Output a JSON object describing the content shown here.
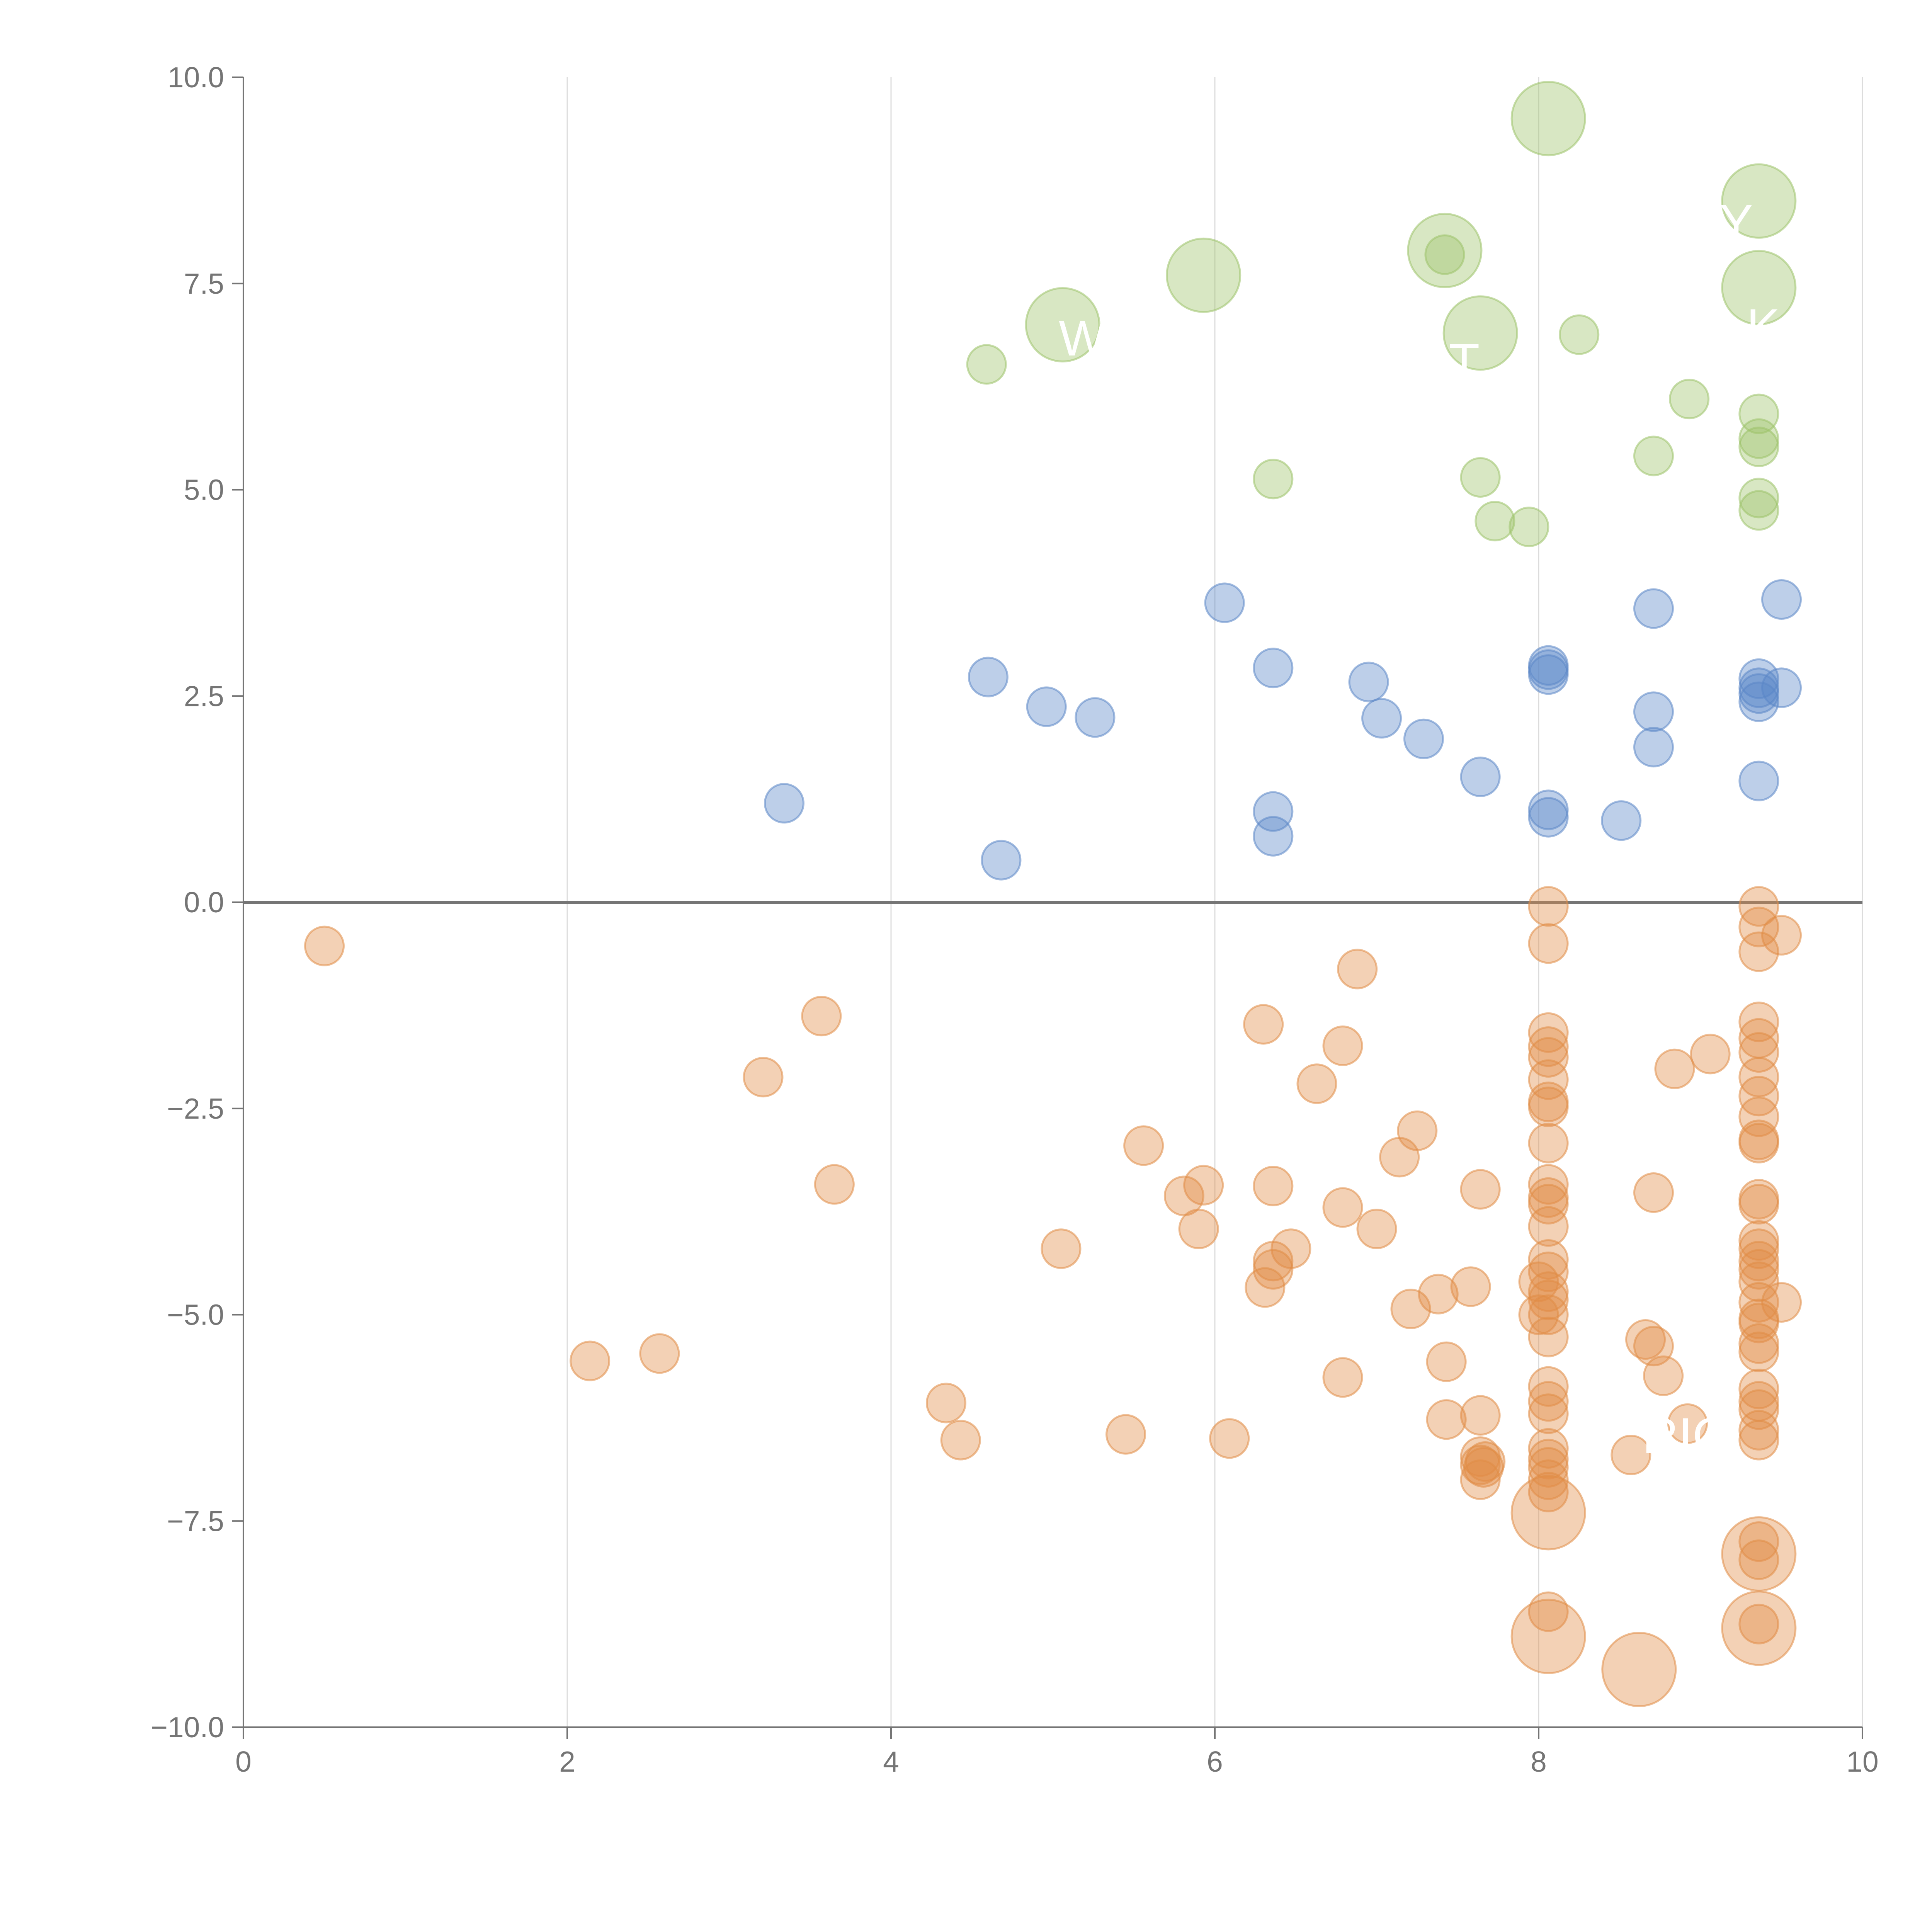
{
  "chart_data": {
    "type": "scatter",
    "title": "",
    "xlabel": "",
    "ylabel": "",
    "xlim": [
      0,
      10
    ],
    "ylim": [
      -10,
      10
    ],
    "x_ticks": [
      "0",
      "2",
      "4",
      "6",
      "8",
      "10"
    ],
    "y_ticks": [
      "10.0",
      "7.5",
      "5.0",
      "2.5",
      "0.0",
      "−2.5",
      "−5.0",
      "−7.5",
      "−10.0"
    ],
    "grid": "vertical",
    "reference_line_y": 0,
    "colors": {
      "high": "#9dc26a",
      "mid": "#5b87c7",
      "low": "#e08c45"
    },
    "series": [
      {
        "name": "high",
        "points": [
          {
            "x": 8.06,
            "y": 9.5,
            "s": 3
          },
          {
            "x": 9.36,
            "y": 8.5,
            "s": 3
          },
          {
            "x": 7.42,
            "y": 7.9,
            "s": 3
          },
          {
            "x": 5.93,
            "y": 7.6,
            "s": 3
          },
          {
            "x": 9.36,
            "y": 7.45,
            "s": 3
          },
          {
            "x": 5.06,
            "y": 7.0,
            "s": 3
          },
          {
            "x": 7.64,
            "y": 6.9,
            "s": 3
          },
          {
            "x": 7.42,
            "y": 7.85,
            "s": 1
          },
          {
            "x": 8.25,
            "y": 6.88,
            "s": 1
          },
          {
            "x": 4.59,
            "y": 6.52,
            "s": 1
          },
          {
            "x": 8.93,
            "y": 6.1,
            "s": 1
          },
          {
            "x": 9.36,
            "y": 5.92,
            "s": 1
          },
          {
            "x": 9.36,
            "y": 5.62,
            "s": 1
          },
          {
            "x": 9.36,
            "y": 5.52,
            "s": 1
          },
          {
            "x": 8.71,
            "y": 5.41,
            "s": 1
          },
          {
            "x": 6.36,
            "y": 5.13,
            "s": 1
          },
          {
            "x": 7.64,
            "y": 5.15,
            "s": 1
          },
          {
            "x": 9.36,
            "y": 4.9,
            "s": 1
          },
          {
            "x": 9.36,
            "y": 4.75,
            "s": 1
          },
          {
            "x": 7.73,
            "y": 4.62,
            "s": 1
          },
          {
            "x": 7.94,
            "y": 4.55,
            "s": 1
          }
        ]
      },
      {
        "name": "mid",
        "points": [
          {
            "x": 9.5,
            "y": 3.67,
            "s": 1
          },
          {
            "x": 6.06,
            "y": 3.63,
            "s": 1
          },
          {
            "x": 8.71,
            "y": 3.56,
            "s": 1
          },
          {
            "x": 6.36,
            "y": 2.84,
            "s": 1
          },
          {
            "x": 8.06,
            "y": 2.87,
            "s": 1
          },
          {
            "x": 8.06,
            "y": 2.82,
            "s": 1
          },
          {
            "x": 8.06,
            "y": 2.76,
            "s": 1
          },
          {
            "x": 4.6,
            "y": 2.73,
            "s": 1
          },
          {
            "x": 9.36,
            "y": 2.71,
            "s": 1
          },
          {
            "x": 6.95,
            "y": 2.67,
            "s": 1
          },
          {
            "x": 9.36,
            "y": 2.6,
            "s": 1
          },
          {
            "x": 9.5,
            "y": 2.6,
            "s": 1
          },
          {
            "x": 9.36,
            "y": 2.53,
            "s": 1
          },
          {
            "x": 9.36,
            "y": 2.43,
            "s": 1
          },
          {
            "x": 4.96,
            "y": 2.37,
            "s": 1
          },
          {
            "x": 8.71,
            "y": 2.31,
            "s": 1
          },
          {
            "x": 5.26,
            "y": 2.24,
            "s": 1
          },
          {
            "x": 7.03,
            "y": 2.23,
            "s": 1
          },
          {
            "x": 7.29,
            "y": 1.98,
            "s": 1
          },
          {
            "x": 8.71,
            "y": 1.88,
            "s": 1
          },
          {
            "x": 7.64,
            "y": 1.52,
            "s": 1
          },
          {
            "x": 9.36,
            "y": 1.47,
            "s": 1
          },
          {
            "x": 3.34,
            "y": 1.2,
            "s": 1
          },
          {
            "x": 6.36,
            "y": 1.1,
            "s": 1
          },
          {
            "x": 8.06,
            "y": 1.12,
            "s": 1
          },
          {
            "x": 8.06,
            "y": 1.03,
            "s": 1
          },
          {
            "x": 8.51,
            "y": 0.99,
            "s": 1
          },
          {
            "x": 6.36,
            "y": 0.8,
            "s": 1
          },
          {
            "x": 4.68,
            "y": 0.51,
            "s": 1
          }
        ]
      },
      {
        "name": "low",
        "points": [
          {
            "x": 8.06,
            "y": -0.05,
            "s": 1
          },
          {
            "x": 9.36,
            "y": -0.05,
            "s": 1
          },
          {
            "x": 9.36,
            "y": -0.3,
            "s": 1
          },
          {
            "x": 9.5,
            "y": -0.4,
            "s": 1
          },
          {
            "x": 0.5,
            "y": -0.53,
            "s": 1
          },
          {
            "x": 8.06,
            "y": -0.5,
            "s": 1
          },
          {
            "x": 9.36,
            "y": -0.6,
            "s": 1
          },
          {
            "x": 6.88,
            "y": -0.81,
            "s": 1
          },
          {
            "x": 3.57,
            "y": -1.38,
            "s": 1
          },
          {
            "x": 6.3,
            "y": -1.48,
            "s": 1
          },
          {
            "x": 9.36,
            "y": -1.45,
            "s": 1
          },
          {
            "x": 8.06,
            "y": -1.58,
            "s": 1
          },
          {
            "x": 9.36,
            "y": -1.65,
            "s": 1
          },
          {
            "x": 6.79,
            "y": -1.74,
            "s": 1
          },
          {
            "x": 8.06,
            "y": -1.75,
            "s": 1
          },
          {
            "x": 9.36,
            "y": -1.82,
            "s": 1
          },
          {
            "x": 8.06,
            "y": -1.88,
            "s": 1
          },
          {
            "x": 9.06,
            "y": -1.84,
            "s": 1
          },
          {
            "x": 8.84,
            "y": -2.02,
            "s": 1
          },
          {
            "x": 3.21,
            "y": -2.12,
            "s": 1
          },
          {
            "x": 9.36,
            "y": -2.12,
            "s": 1
          },
          {
            "x": 8.06,
            "y": -2.15,
            "s": 1
          },
          {
            "x": 6.63,
            "y": -2.2,
            "s": 1
          },
          {
            "x": 9.36,
            "y": -2.35,
            "s": 1
          },
          {
            "x": 8.06,
            "y": -2.42,
            "s": 1
          },
          {
            "x": 8.06,
            "y": -2.48,
            "s": 1
          },
          {
            "x": 9.36,
            "y": -2.6,
            "s": 1
          },
          {
            "x": 7.25,
            "y": -2.77,
            "s": 1
          },
          {
            "x": 9.36,
            "y": -2.88,
            "s": 1
          },
          {
            "x": 9.36,
            "y": -2.92,
            "s": 1
          },
          {
            "x": 8.06,
            "y": -2.92,
            "s": 1
          },
          {
            "x": 5.56,
            "y": -2.95,
            "s": 1
          },
          {
            "x": 7.14,
            "y": -3.09,
            "s": 1
          },
          {
            "x": 6.36,
            "y": -3.44,
            "s": 1
          },
          {
            "x": 3.65,
            "y": -3.42,
            "s": 1
          },
          {
            "x": 5.93,
            "y": -3.43,
            "s": 1
          },
          {
            "x": 8.06,
            "y": -3.42,
            "s": 1
          },
          {
            "x": 7.64,
            "y": -3.48,
            "s": 1
          },
          {
            "x": 8.71,
            "y": -3.52,
            "s": 1
          },
          {
            "x": 8.06,
            "y": -3.58,
            "s": 1
          },
          {
            "x": 5.81,
            "y": -3.56,
            "s": 1
          },
          {
            "x": 9.36,
            "y": -3.6,
            "s": 1
          },
          {
            "x": 8.06,
            "y": -3.66,
            "s": 1
          },
          {
            "x": 9.36,
            "y": -3.66,
            "s": 1
          },
          {
            "x": 6.79,
            "y": -3.7,
            "s": 1
          },
          {
            "x": 5.9,
            "y": -3.96,
            "s": 1
          },
          {
            "x": 7.0,
            "y": -3.96,
            "s": 1
          },
          {
            "x": 8.06,
            "y": -3.93,
            "s": 1
          },
          {
            "x": 9.36,
            "y": -4.1,
            "s": 1
          },
          {
            "x": 9.36,
            "y": -4.2,
            "s": 1
          },
          {
            "x": 5.05,
            "y": -4.2,
            "s": 1
          },
          {
            "x": 6.47,
            "y": -4.2,
            "s": 1
          },
          {
            "x": 9.36,
            "y": -4.35,
            "s": 1
          },
          {
            "x": 8.06,
            "y": -4.33,
            "s": 1
          },
          {
            "x": 6.36,
            "y": -4.35,
            "s": 1
          },
          {
            "x": 9.36,
            "y": -4.45,
            "s": 1
          },
          {
            "x": 6.36,
            "y": -4.45,
            "s": 1
          },
          {
            "x": 8.06,
            "y": -4.48,
            "s": 1
          },
          {
            "x": 9.36,
            "y": -4.6,
            "s": 1
          },
          {
            "x": 8.0,
            "y": -4.6,
            "s": 1
          },
          {
            "x": 7.58,
            "y": -4.66,
            "s": 1
          },
          {
            "x": 6.31,
            "y": -4.67,
            "s": 1
          },
          {
            "x": 8.06,
            "y": -4.72,
            "s": 1
          },
          {
            "x": 7.38,
            "y": -4.75,
            "s": 1
          },
          {
            "x": 8.06,
            "y": -4.82,
            "s": 1
          },
          {
            "x": 9.36,
            "y": -4.85,
            "s": 1
          },
          {
            "x": 9.5,
            "y": -4.85,
            "s": 1
          },
          {
            "x": 7.21,
            "y": -4.93,
            "s": 1
          },
          {
            "x": 8.06,
            "y": -5.0,
            "s": 1
          },
          {
            "x": 8.0,
            "y": -5.0,
            "s": 1
          },
          {
            "x": 9.36,
            "y": -5.05,
            "s": 1
          },
          {
            "x": 9.36,
            "y": -5.1,
            "s": 1
          },
          {
            "x": 8.06,
            "y": -5.27,
            "s": 1
          },
          {
            "x": 8.66,
            "y": -5.3,
            "s": 1
          },
          {
            "x": 9.36,
            "y": -5.35,
            "s": 1
          },
          {
            "x": 8.71,
            "y": -5.38,
            "s": 1
          },
          {
            "x": 9.36,
            "y": -5.45,
            "s": 1
          },
          {
            "x": 2.57,
            "y": -5.47,
            "s": 1
          },
          {
            "x": 2.14,
            "y": -5.56,
            "s": 1
          },
          {
            "x": 7.43,
            "y": -5.57,
            "s": 1
          },
          {
            "x": 8.77,
            "y": -5.74,
            "s": 1
          },
          {
            "x": 6.79,
            "y": -5.76,
            "s": 1
          },
          {
            "x": 8.06,
            "y": -5.87,
            "s": 1
          },
          {
            "x": 9.36,
            "y": -5.9,
            "s": 1
          },
          {
            "x": 9.36,
            "y": -6.05,
            "s": 1
          },
          {
            "x": 8.06,
            "y": -6.05,
            "s": 1
          },
          {
            "x": 4.34,
            "y": -6.07,
            "s": 1
          },
          {
            "x": 9.36,
            "y": -6.15,
            "s": 1
          },
          {
            "x": 8.06,
            "y": -6.2,
            "s": 1
          },
          {
            "x": 7.64,
            "y": -6.22,
            "s": 1
          },
          {
            "x": 7.43,
            "y": -6.27,
            "s": 1
          },
          {
            "x": 8.92,
            "y": -6.32,
            "s": 1
          },
          {
            "x": 9.36,
            "y": -6.4,
            "s": 1
          },
          {
            "x": 5.45,
            "y": -6.45,
            "s": 1
          },
          {
            "x": 6.09,
            "y": -6.5,
            "s": 1
          },
          {
            "x": 4.43,
            "y": -6.52,
            "s": 1
          },
          {
            "x": 9.36,
            "y": -6.52,
            "s": 1
          },
          {
            "x": 8.06,
            "y": -6.62,
            "s": 1
          },
          {
            "x": 8.57,
            "y": -6.7,
            "s": 1
          },
          {
            "x": 7.64,
            "y": -6.72,
            "s": 1
          },
          {
            "x": 8.06,
            "y": -6.75,
            "s": 1
          },
          {
            "x": 7.67,
            "y": -6.78,
            "s": 1
          },
          {
            "x": 7.64,
            "y": -6.82,
            "s": 1
          },
          {
            "x": 8.06,
            "y": -6.85,
            "s": 1
          },
          {
            "x": 7.66,
            "y": -6.85,
            "s": 1
          },
          {
            "x": 8.06,
            "y": -7.0,
            "s": 1
          },
          {
            "x": 7.64,
            "y": -7.0,
            "s": 1
          },
          {
            "x": 8.06,
            "y": -7.15,
            "s": 1
          },
          {
            "x": 8.06,
            "y": -7.4,
            "s": 3
          },
          {
            "x": 9.36,
            "y": -7.75,
            "s": 1
          },
          {
            "x": 9.36,
            "y": -7.9,
            "s": 3
          },
          {
            "x": 9.36,
            "y": -7.97,
            "s": 1
          },
          {
            "x": 8.06,
            "y": -8.6,
            "s": 1
          },
          {
            "x": 9.36,
            "y": -8.75,
            "s": 1
          },
          {
            "x": 9.36,
            "y": -8.8,
            "s": 3
          },
          {
            "x": 8.06,
            "y": -8.9,
            "s": 3
          },
          {
            "x": 8.62,
            "y": -9.3,
            "s": 3
          }
        ]
      }
    ],
    "annotations": [
      "W",
      "T",
      "K",
      "Y",
      "RIC"
    ]
  }
}
